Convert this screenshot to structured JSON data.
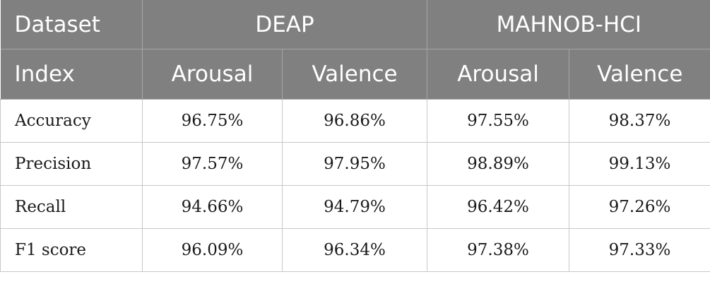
{
  "header": {
    "row1": {
      "first": "Dataset",
      "groups": [
        "DEAP",
        "MAHNOB-HCI"
      ]
    },
    "row2": {
      "first": "Index",
      "columns": [
        "Arousal",
        "Valence",
        "Arousal",
        "Valence"
      ]
    }
  },
  "rows": [
    {
      "label": "Accuracy",
      "values": [
        "96.75%",
        "96.86%",
        "97.55%",
        "98.37%"
      ]
    },
    {
      "label": "Precision",
      "values": [
        "97.57%",
        "97.95%",
        "98.89%",
        "99.13%"
      ]
    },
    {
      "label": "Recall",
      "values": [
        "94.66%",
        "94.79%",
        "96.42%",
        "97.26%"
      ]
    },
    {
      "label": "F1 score",
      "values": [
        "96.09%",
        "96.34%",
        "97.38%",
        "97.33%"
      ]
    }
  ],
  "colors": {
    "header_bg": "#808080",
    "header_text": "#ffffff",
    "grid": "#c8c8c8"
  },
  "chart_data": {
    "type": "table",
    "columns": [
      "Dataset / Index",
      "DEAP Arousal",
      "DEAP Valence",
      "MAHNOB-HCI Arousal",
      "MAHNOB-HCI Valence"
    ],
    "rows": [
      [
        "Accuracy",
        96.75,
        96.86,
        97.55,
        98.37
      ],
      [
        "Precision",
        97.57,
        97.95,
        98.89,
        99.13
      ],
      [
        "Recall",
        94.66,
        94.79,
        96.42,
        97.26
      ],
      [
        "F1 score",
        96.09,
        96.34,
        97.38,
        97.33
      ]
    ]
  }
}
